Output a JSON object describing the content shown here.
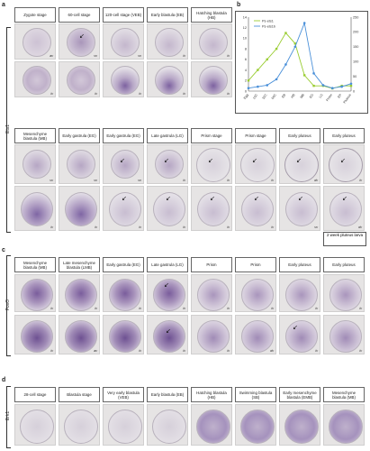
{
  "panel_labels": {
    "a": "a",
    "b": "b",
    "c": "c",
    "d": "d"
  },
  "row_names": {
    "a": "Ets1",
    "c": "FoxO",
    "d": "Erk1"
  },
  "panel_a": {
    "row1_headers": [
      "Zygote stage",
      "60-cell stage",
      "120-cell stage (VEB)",
      "Early blastula (EB)",
      "Hatching blastula (HB)"
    ],
    "row1_views_top": [
      "av",
      "vv",
      "vv",
      "lv",
      "lv"
    ],
    "row1_views_bottom": [
      "lv",
      "lv",
      "lv",
      "lv",
      "lv"
    ],
    "row2_headers": [
      "Mesenchyme blastula (MB)",
      "Early gastrula (EG)",
      "Early gastrula (EG)",
      "Late gastrula (LG)",
      "Prism stage",
      "Prism stage",
      "Early pluteus",
      "Early pluteus"
    ],
    "row2_views_top": [
      "vv",
      "vv",
      "vv",
      "lv",
      "lv",
      "lv",
      "dv",
      "lv"
    ],
    "row2_views_bottom": [
      "lv",
      "lv",
      "lv",
      "lv",
      "lv",
      "lv",
      "vv",
      "dv"
    ],
    "footnote": "2 week pluteus larva"
  },
  "panel_b": {
    "chart_data": {
      "type": "line",
      "categories": [
        "Egg",
        "16C",
        "32C",
        "60C",
        "EB",
        "HB",
        "MB",
        "EG",
        "LG",
        "Prism",
        "EP",
        "Pluteus"
      ],
      "series": [
        {
          "name": "Ps-ets1",
          "color": "#9acd32",
          "axis": "left",
          "values": [
            2,
            4,
            6,
            8,
            11,
            9,
            3,
            1,
            1,
            0.5,
            1,
            1
          ]
        },
        {
          "name": "Ps-ets1b",
          "color": "#4a90d9",
          "axis": "right",
          "values": [
            10,
            15,
            20,
            40,
            90,
            150,
            230,
            60,
            20,
            10,
            15,
            25
          ]
        }
      ],
      "ylim_left": [
        0,
        14
      ],
      "ylim_right": [
        0,
        250
      ],
      "yticks_left": [
        "0",
        "2",
        "4",
        "6",
        "8",
        "10",
        "12",
        "14"
      ],
      "yticks_right": [
        "0",
        "50",
        "100",
        "150",
        "200",
        "250"
      ],
      "legend_position": "top-left"
    }
  },
  "panel_c": {
    "headers": [
      "Mesenchyme blastula (MB)",
      "Late mesenchyme blastula (LMB)",
      "Early gastrula (EG)",
      "Late gastrula (LG)",
      "Prism",
      "Prism",
      "Early pluteus",
      "Early pluteus"
    ],
    "views_top": [
      "lv",
      "lv",
      "lv",
      "lv",
      "lv",
      "lv",
      "lv",
      "lv"
    ],
    "views_bottom": [
      "lv",
      "av",
      "lv",
      "lv",
      "lv",
      "dv",
      "lv",
      "lv"
    ]
  },
  "panel_d": {
    "headers": [
      "28-cell stage",
      "Blastula stage",
      "Very early blastula (VEB)",
      "Early blastula (EB)",
      "Hatching blastula (HB)",
      "Swimming blastula (SB)",
      "Early mesenchyme blastula (EMB)",
      "Mesenchyme blastula (MB)"
    ]
  }
}
